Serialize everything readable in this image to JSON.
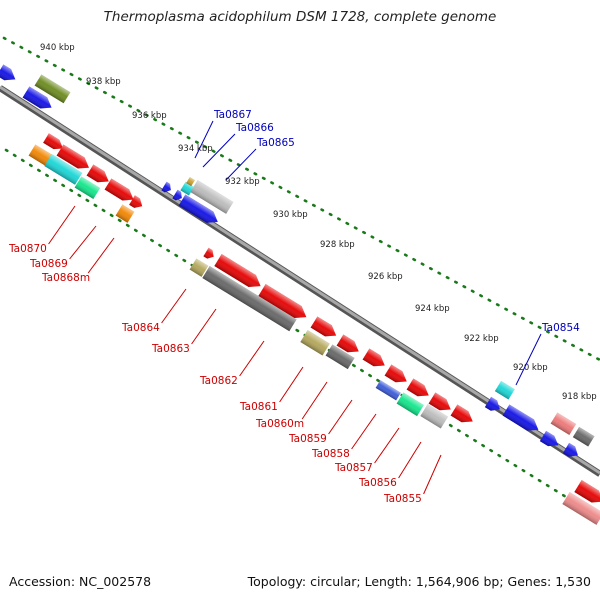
{
  "header": {
    "title": "Thermoplasma acidophilum DSM 1728, complete genome"
  },
  "footer": {
    "accession": "Accession: NC_002578",
    "topology": "Topology: circular; Length: 1,564,906 bp; Genes: 1,530"
  },
  "colors": {
    "forward_label": "#0000bb",
    "reverse_label": "#cc0000",
    "scale_ticks": "#1a7a1a",
    "backbone": "#777777"
  },
  "scale_ticks": [
    "940 kbp",
    "938 kbp",
    "936 kbp",
    "934 kbp",
    "932 kbp",
    "930 kbp",
    "928 kbp",
    "926 kbp",
    "924 kbp",
    "922 kbp",
    "920 kbp",
    "918 kbp"
  ],
  "forward_labels": [
    "Ta0867",
    "Ta0866",
    "Ta0865",
    "Ta0854"
  ],
  "reverse_labels": [
    "Ta0870",
    "Ta0869",
    "Ta0868m",
    "Ta0864",
    "Ta0863",
    "Ta0862",
    "Ta0861",
    "Ta0860m",
    "Ta0859",
    "Ta0858",
    "Ta0857",
    "Ta0856",
    "Ta0855"
  ]
}
